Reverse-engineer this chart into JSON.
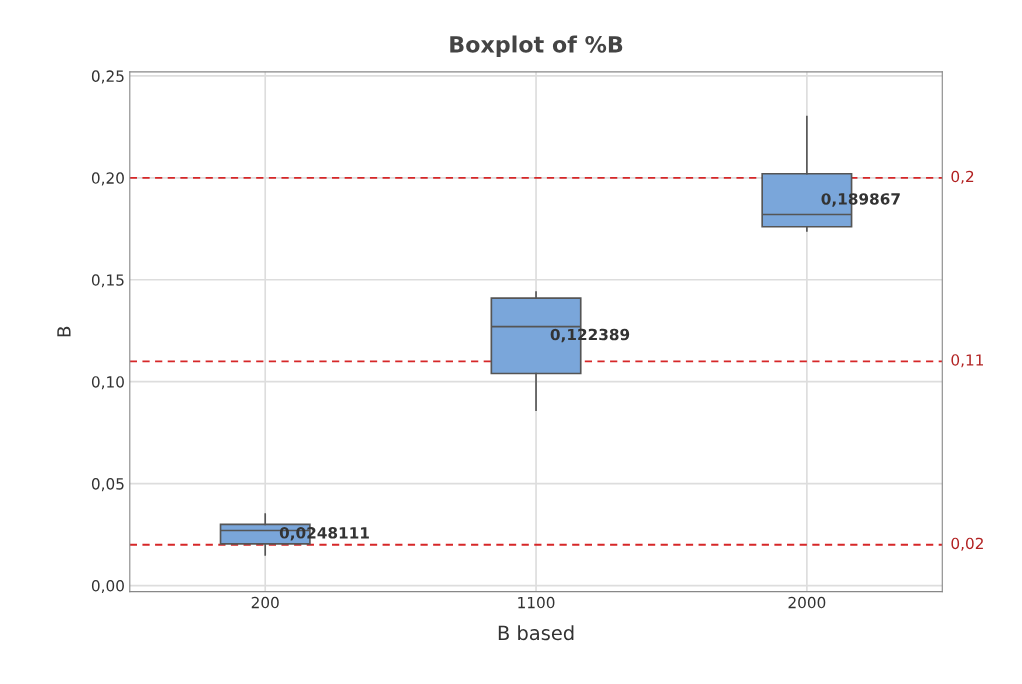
{
  "chart_data": {
    "type": "box",
    "title": "Boxplot of %B",
    "xlabel": "B based",
    "ylabel": "B",
    "categories": [
      "200",
      "1100",
      "2000"
    ],
    "boxes": [
      {
        "low": 0.015,
        "q1": 0.0204,
        "median": 0.027,
        "q3": 0.03,
        "high": 0.035
      },
      {
        "low": 0.086,
        "q1": 0.104,
        "median": 0.127,
        "q3": 0.141,
        "high": 0.144
      },
      {
        "low": 0.174,
        "q1": 0.176,
        "median": 0.182,
        "q3": 0.202,
        "high": 0.23
      }
    ],
    "annotations": [
      "0,0248111",
      "0,122389",
      "0,189867"
    ],
    "color": "#7aa6da",
    "ylim": [
      -0.003,
      0.252
    ],
    "yticks": [
      {
        "value": 0,
        "label": "0,00"
      },
      {
        "value": 0.05,
        "label": "0,05"
      },
      {
        "value": 0.1,
        "label": "0,10"
      },
      {
        "value": 0.15,
        "label": "0,15"
      },
      {
        "value": 0.2,
        "label": "0,20"
      },
      {
        "value": 0.25,
        "label": "0,25"
      }
    ],
    "grid": true,
    "ref_lines": [
      {
        "axis": "y",
        "value": 0.2,
        "label": "0,2",
        "color": "#d62728",
        "line_style": "dashed"
      },
      {
        "axis": "y",
        "value": 0.11,
        "label": "0,11",
        "color": "#d62728",
        "line_style": "dashed"
      },
      {
        "axis": "y",
        "value": 0.02,
        "label": "0,02",
        "color": "#d62728",
        "line_style": "dashed"
      }
    ]
  }
}
